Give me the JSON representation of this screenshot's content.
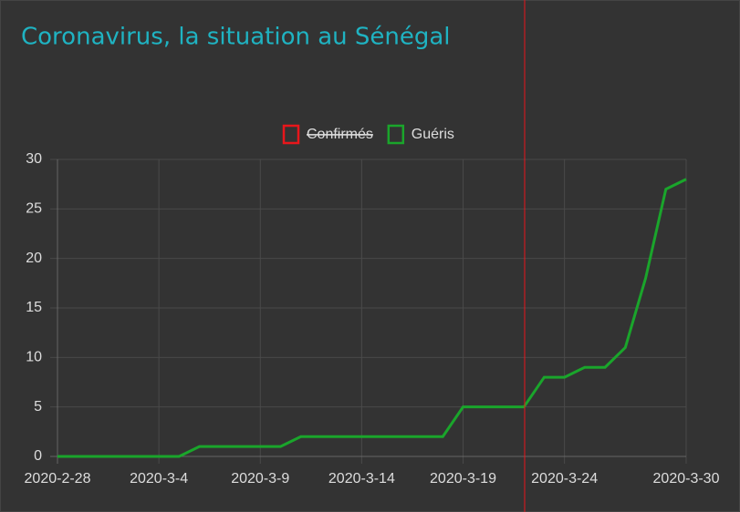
{
  "chart_data": {
    "type": "line",
    "title": "Coronavirus, la situation au Sénégal",
    "categories": [
      "2020-2-28",
      null,
      null,
      null,
      null,
      "2020-3-4",
      null,
      null,
      null,
      null,
      "2020-3-9",
      null,
      null,
      null,
      null,
      "2020-3-14",
      null,
      null,
      null,
      null,
      "2020-3-19",
      null,
      null,
      null,
      null,
      "2020-3-24",
      null,
      null,
      null,
      null,
      null,
      "2020-3-30"
    ],
    "series": [
      {
        "name": "Confirmés",
        "color": "#e8161b",
        "hidden": true,
        "values": [
          null,
          null,
          null,
          null,
          null,
          null,
          null,
          null,
          null,
          null,
          null,
          null,
          null,
          null,
          null,
          null,
          null,
          null,
          null,
          null,
          null,
          null,
          null,
          null,
          null,
          null,
          null,
          null,
          null,
          null,
          null,
          null
        ]
      },
      {
        "name": "Guéris",
        "color": "#1aa52b",
        "values": [
          0,
          0,
          0,
          0,
          0,
          0,
          0,
          1,
          1,
          1,
          1,
          1,
          2,
          2,
          2,
          2,
          2,
          2,
          2,
          2,
          5,
          5,
          5,
          5,
          8,
          8,
          9,
          9,
          11,
          18,
          27,
          28
        ]
      }
    ],
    "ylim": [
      0,
      30
    ],
    "yticks": [
      0,
      5,
      10,
      15,
      20,
      25,
      30
    ],
    "grid": true,
    "legend": "top"
  }
}
